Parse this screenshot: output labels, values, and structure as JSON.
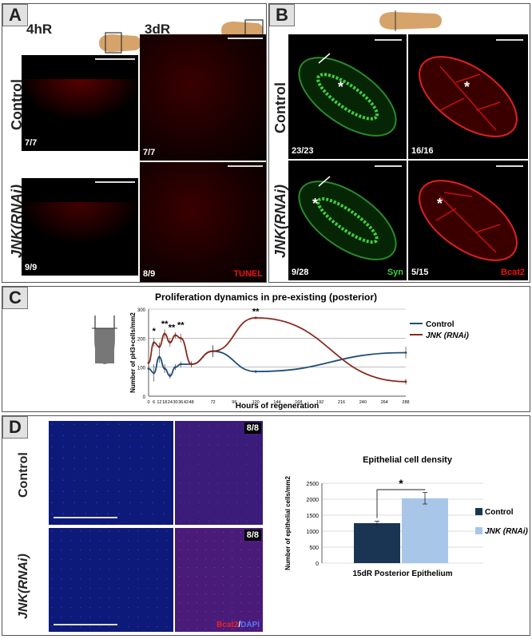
{
  "panelA": {
    "letter": "A",
    "time_4h": "4hR",
    "time_3d": "3dR",
    "row_control": "Control",
    "row_jnk": "JNK(RNAi)",
    "counts": {
      "c4": "7/7",
      "c3": "7/7",
      "j4": "9/9",
      "j3": "8/9"
    },
    "stain": "TUNEL"
  },
  "panelB": {
    "letter": "B",
    "row_control": "Control",
    "row_jnk": "JNK(RNAi)",
    "counts": {
      "c_syn": "23/23",
      "c_bcat": "16/16",
      "j_syn": "9/28",
      "j_bcat": "5/15"
    },
    "stain_syn": "Syn",
    "stain_bcat": "Bcat2",
    "asterisk": "*"
  },
  "panelC": {
    "letter": "C",
    "stars": {
      "s1": "*",
      "s2": "**",
      "s3": "**",
      "s4": "**",
      "s5": "**"
    }
  },
  "panelD": {
    "letter": "D",
    "row_control": "Control",
    "row_jnk": "JNK(RNAi)",
    "counts": {
      "c": "8/8",
      "j": "8/8"
    },
    "stain_bcat": "Bcat2",
    "stain_dapi": "DAPI",
    "significance": "*"
  },
  "chart_data": [
    {
      "type": "line",
      "title": "Proliferation dynamics in pre-existing (posterior)",
      "xlabel": "Hours of regeneration",
      "ylabel": "Number of pH3+cells/mm2",
      "xlim": [
        0,
        288
      ],
      "ylim": [
        0,
        300
      ],
      "xticks": [
        0,
        6,
        12,
        18,
        24,
        30,
        36,
        42,
        48,
        72,
        96,
        120,
        144,
        168,
        192,
        216,
        240,
        264,
        288
      ],
      "yticks": [
        0,
        100,
        200,
        300
      ],
      "legend_position": "right",
      "series": [
        {
          "name": "Control",
          "color": "#1f4e79",
          "x": [
            0,
            6,
            12,
            18,
            24,
            30,
            36,
            48,
            72,
            120,
            288
          ],
          "y": [
            95,
            80,
            135,
            95,
            70,
            100,
            110,
            110,
            155,
            85,
            150
          ],
          "err": [
            15,
            30,
            20,
            15,
            10,
            10,
            10,
            10,
            20,
            5,
            20
          ]
        },
        {
          "name": "JNK (RNAi)",
          "color": "#8b2a1a",
          "x": [
            0,
            6,
            12,
            18,
            24,
            30,
            36,
            48,
            72,
            120,
            288
          ],
          "y": [
            115,
            185,
            170,
            215,
            185,
            210,
            200,
            110,
            155,
            270,
            50
          ],
          "err": [
            10,
            15,
            15,
            15,
            15,
            10,
            15,
            10,
            20,
            5,
            10
          ]
        }
      ]
    },
    {
      "type": "bar",
      "title": "Epithelial cell density",
      "xlabel": "15dR Posterior Epithelium",
      "ylabel": "Number of epithelial cells/mm2",
      "ylim": [
        0,
        2500
      ],
      "yticks": [
        0,
        500,
        1000,
        1500,
        2000,
        2500
      ],
      "legend_position": "right",
      "series": [
        {
          "name": "Control",
          "values": [
            1250
          ],
          "err": [
            60
          ],
          "color": "#1a3553"
        },
        {
          "name": "JNK (RNAi)",
          "values": [
            2030
          ],
          "err": [
            180
          ],
          "color": "#a8c6e8"
        }
      ]
    }
  ]
}
